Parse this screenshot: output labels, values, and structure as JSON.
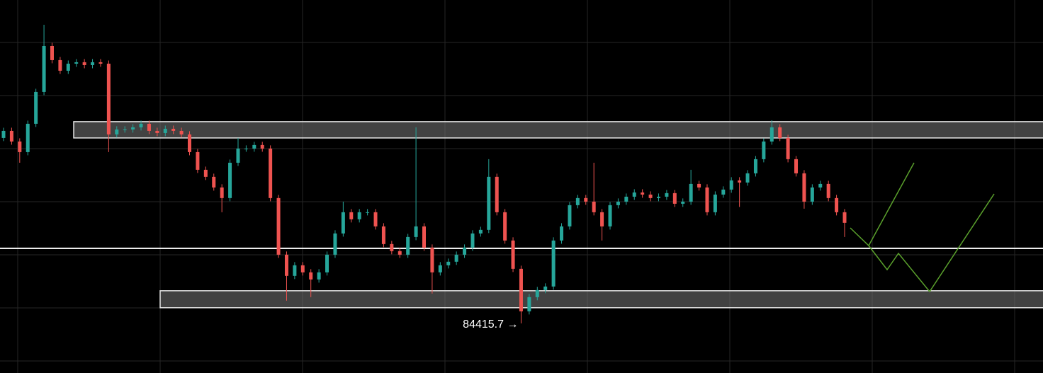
{
  "chart_data": {
    "type": "candlestick",
    "up_color": "#26a69a",
    "down_color": "#ef5350",
    "grid": true,
    "ylim": [
      83480,
      90510
    ],
    "open": [
      87910,
      88043,
      87843,
      87643,
      88177,
      88777,
      89643,
      89377,
      89177,
      89310,
      89337,
      89283,
      89337,
      89310,
      87977,
      88070,
      88070,
      88110,
      88177,
      88043,
      88003,
      88083,
      88043,
      87977,
      87643,
      87310,
      87177,
      86977,
      86777,
      87443,
      87710,
      87710,
      87777,
      87710,
      86777,
      85710,
      85310,
      85510,
      85377,
      85243,
      85377,
      85710,
      86110,
      86510,
      86377,
      86510,
      86510,
      86243,
      85910,
      85777,
      85710,
      86043,
      86243,
      85843,
      85377,
      85510,
      85577,
      85710,
      85843,
      86110,
      86177,
      87177,
      86510,
      85977,
      85443,
      84643,
      84910,
      85043,
      85110,
      85977,
      86243,
      86643,
      86777,
      86710,
      86510,
      86243,
      86643,
      86710,
      86803,
      86883,
      86843,
      86777,
      86803,
      86870,
      86670,
      86710,
      87043,
      86977,
      86510,
      86843,
      86937,
      87110,
      87070,
      87243,
      87510,
      87843,
      88110,
      87910,
      87510,
      87243,
      86710,
      86977,
      87043,
      86777,
      86510
    ],
    "high": [
      88103,
      88103,
      87903,
      88237,
      88837,
      90043,
      89703,
      89437,
      89370,
      89397,
      89397,
      89397,
      89397,
      89370,
      88130,
      88130,
      88170,
      88237,
      88237,
      88103,
      88143,
      88143,
      88103,
      88037,
      87703,
      87370,
      87237,
      87037,
      87503,
      87910,
      87770,
      87837,
      87837,
      87770,
      86837,
      85770,
      85570,
      85570,
      85437,
      85437,
      85770,
      86170,
      86710,
      86570,
      86570,
      86570,
      86570,
      86303,
      85970,
      85837,
      86103,
      88110,
      86303,
      85903,
      85570,
      85637,
      85770,
      85903,
      86170,
      86237,
      87510,
      87237,
      86570,
      86037,
      85503,
      84970,
      85103,
      85170,
      86037,
      86303,
      86703,
      86837,
      86837,
      87443,
      86570,
      86703,
      86770,
      86863,
      86943,
      86943,
      86903,
      86863,
      86930,
      86930,
      86770,
      87310,
      87103,
      87037,
      86903,
      86997,
      87170,
      87170,
      87303,
      87570,
      87903,
      88243,
      88170,
      87970,
      87570,
      87303,
      87037,
      87103,
      87103,
      86837,
      86570
    ],
    "low": [
      87850,
      87783,
      87443,
      87583,
      88117,
      88717,
      89317,
      89117,
      89117,
      89250,
      89223,
      89223,
      89250,
      87643,
      87917,
      88010,
      88010,
      88050,
      87983,
      87943,
      87943,
      87983,
      87917,
      87583,
      87250,
      87117,
      86917,
      86510,
      86717,
      87383,
      87650,
      87650,
      87650,
      86717,
      85650,
      84843,
      85250,
      85317,
      84910,
      85183,
      85317,
      85650,
      86050,
      86317,
      86317,
      86450,
      86183,
      85850,
      85717,
      85650,
      85650,
      85983,
      85783,
      84977,
      85317,
      85450,
      85517,
      85650,
      85783,
      86050,
      86117,
      86450,
      85917,
      85383,
      84415.7,
      84583,
      84850,
      84983,
      85050,
      85917,
      86183,
      86583,
      86650,
      86450,
      85977,
      86183,
      86583,
      86650,
      86743,
      86783,
      86717,
      86717,
      86743,
      86610,
      86610,
      86650,
      86917,
      86450,
      86450,
      86783,
      86877,
      86610,
      87010,
      87183,
      87450,
      87783,
      87850,
      87450,
      87183,
      86577,
      86650,
      86917,
      86717,
      86450,
      86043
    ],
    "close": [
      88043,
      87843,
      87643,
      88177,
      88777,
      89643,
      89377,
      89177,
      89310,
      89337,
      89283,
      89337,
      89310,
      87977,
      88070,
      88070,
      88110,
      88177,
      88043,
      88003,
      88083,
      88043,
      87977,
      87643,
      87310,
      87177,
      86977,
      86777,
      87443,
      87710,
      87710,
      87777,
      87710,
      86777,
      85710,
      85310,
      85510,
      85377,
      85243,
      85377,
      85710,
      86110,
      86510,
      86377,
      86510,
      86510,
      86243,
      85910,
      85777,
      85710,
      86043,
      86243,
      85843,
      85377,
      85510,
      85577,
      85710,
      85843,
      86110,
      86177,
      87177,
      86510,
      85977,
      85443,
      84643,
      84910,
      85043,
      85110,
      85977,
      86243,
      86643,
      86777,
      86710,
      86510,
      86243,
      86643,
      86710,
      86803,
      86883,
      86843,
      86777,
      86803,
      86870,
      86670,
      86710,
      87043,
      86977,
      86510,
      86843,
      86937,
      87110,
      87070,
      87243,
      87510,
      87843,
      88110,
      87910,
      87510,
      87243,
      86710,
      86977,
      87043,
      86777,
      86510,
      86310
    ],
    "zones": [
      {
        "low": 87910,
        "high": 88217
      },
      {
        "low": 84710,
        "high": 85030
      }
    ],
    "level": 85830,
    "annotation": "84415.7 →"
  }
}
